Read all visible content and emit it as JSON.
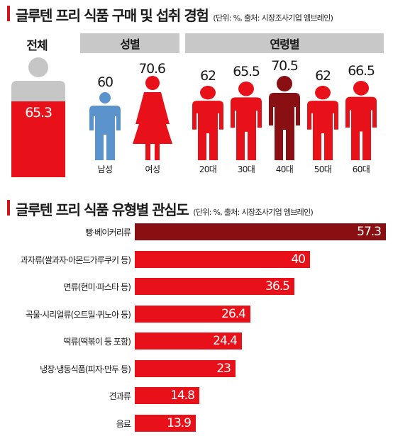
{
  "section1": {
    "title": "글루텐 프리 식품 구매 및 섭취 경험",
    "source": "(단위: %, 출처: 시장조사기업 엠브레인)"
  },
  "section2": {
    "title": "글루텐 프리 식품 유형별 관심도",
    "source": "(단위: %, 출처: 시장조사기업 엠브레인)"
  },
  "colors": {
    "red": "#e8111a",
    "dark_red": "#8a0f12",
    "blue": "#5b93cc",
    "gray": "#c6c6c6",
    "header_gray": "#c8c8c8"
  },
  "chart_data": [
    {
      "type": "bar",
      "title": "글루텐 프리 식품 구매 및 섭취 경험",
      "total": {
        "label": "전체",
        "value": 65.3
      },
      "groups": [
        {
          "name": "성별",
          "categories": [
            "남성",
            "여성"
          ],
          "values": [
            60,
            70.6
          ]
        },
        {
          "name": "연령별",
          "categories": [
            "20대",
            "30대",
            "40대",
            "50대",
            "60대"
          ],
          "values": [
            62,
            65.5,
            70.5,
            62,
            66.5
          ]
        }
      ],
      "unit": "%"
    },
    {
      "type": "bar",
      "title": "글루텐 프리 식품 유형별 관심도",
      "orientation": "horizontal",
      "categories": [
        "빵·베이커리류",
        "과자류(쌀과자·아몬드가루쿠키 등)",
        "면류(현미·파스타 등)",
        "곡물·시리얼류(오트밀·퀴노아 등)",
        "떡류(떡볶이 등 포함)",
        "냉장·냉동식품(피자·만두 등)",
        "견과류",
        "음료"
      ],
      "values": [
        57.3,
        40,
        36.5,
        26.4,
        24.4,
        23,
        14.8,
        13.9
      ],
      "xlim": [
        0,
        57.3
      ],
      "unit": "%"
    }
  ]
}
